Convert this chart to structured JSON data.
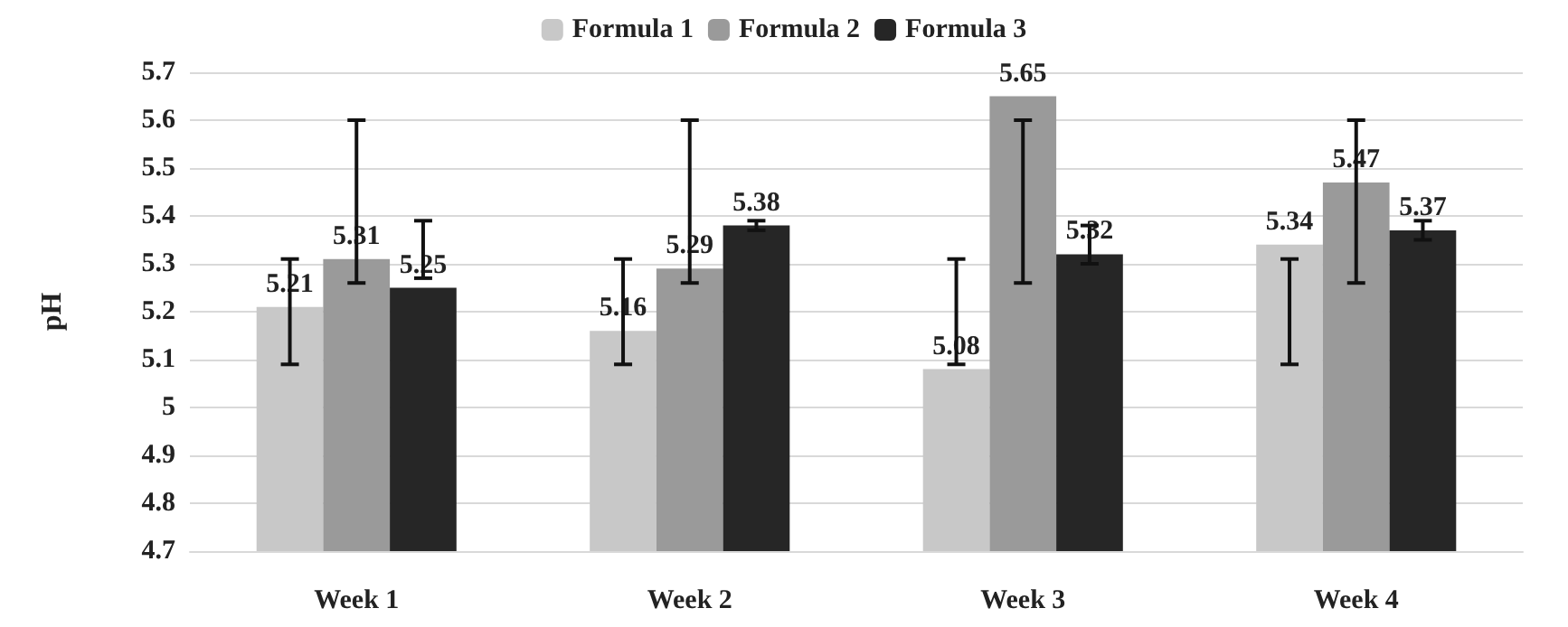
{
  "chart_data": {
    "type": "bar",
    "ylabel": "pH",
    "categories": [
      "Week 1",
      "Week 2",
      "Week 3",
      "Week 4"
    ],
    "series": [
      {
        "name": "Formula 1",
        "color": "#c8c8c8",
        "values": [
          5.21,
          5.16,
          5.08,
          5.34
        ],
        "errors": [
          [
            5.09,
            5.31
          ],
          [
            5.09,
            5.31
          ],
          [
            5.09,
            5.31
          ],
          [
            5.09,
            5.31
          ]
        ]
      },
      {
        "name": "Formula 2",
        "color": "#9a9a9a",
        "values": [
          5.31,
          5.29,
          5.65,
          5.47
        ],
        "errors": [
          [
            5.26,
            5.6
          ],
          [
            5.26,
            5.6
          ],
          [
            5.26,
            5.6
          ],
          [
            5.26,
            5.6
          ]
        ]
      },
      {
        "name": "Formula 3",
        "color": "#262626",
        "values": [
          5.25,
          5.38,
          5.32,
          5.37
        ],
        "errors": [
          [
            5.27,
            5.39
          ],
          [
            5.37,
            5.39
          ],
          [
            5.3,
            5.38
          ],
          [
            5.35,
            5.39
          ]
        ]
      }
    ],
    "ylim": [
      4.7,
      5.7
    ],
    "yticks": [
      4.7,
      4.8,
      4.9,
      5,
      5.1,
      5.2,
      5.3,
      5.4,
      5.5,
      5.6,
      5.7
    ],
    "grid": "y",
    "legend": "top",
    "data_labels": true
  }
}
